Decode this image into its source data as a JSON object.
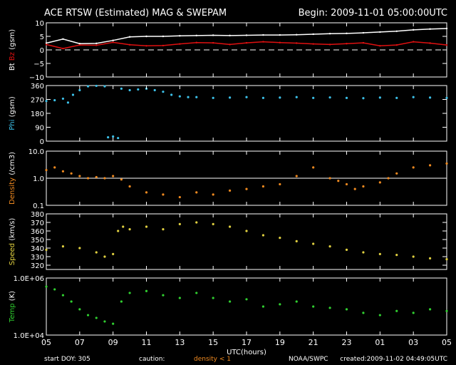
{
  "header": {
    "title": "ACE RTSW (Estimated) MAG & SWEPAM",
    "begin": "Begin: 2009-11-01 05:00:00UTC"
  },
  "footer": {
    "start_doy": "start DOY: 305",
    "caution_label": "caution:",
    "caution_note": "density < 1",
    "agency": "NOAA/SWPC",
    "created": "created:2009-11-02 04:49:05UTC"
  },
  "colors": {
    "background": "#000000",
    "axes": "#ffffff",
    "bt": "#ffffff",
    "bz": "#e01010",
    "phi": "#3cc0e8",
    "density": "#f08a20",
    "speed": "#e0d040",
    "temp": "#30d030"
  },
  "chart_data": [
    {
      "type": "line",
      "panel": "mag",
      "ylabel_parts": [
        {
          "text": "Bt",
          "color": "#ffffff"
        },
        {
          "text": "  ",
          "color": "#ffffff"
        },
        {
          "text": "Bz",
          "color": "#e01010"
        },
        {
          "text": "  (gsm)",
          "color": "#ffffff"
        }
      ],
      "ylim": [
        -10,
        10
      ],
      "yticks": [
        {
          "v": 10,
          "label": "10"
        },
        {
          "v": 5,
          "label": "5"
        },
        {
          "v": 0,
          "label": "0"
        },
        {
          "v": -5,
          "label": "−5"
        },
        {
          "v": -10,
          "label": "−10"
        }
      ],
      "reference_line": {
        "y": 0,
        "style": "dashed"
      },
      "series": [
        {
          "name": "Bt",
          "color": "#ffffff",
          "x": [
            0,
            1,
            2,
            3,
            4,
            5,
            6,
            7,
            8,
            9,
            10,
            11,
            12,
            13,
            14,
            15,
            16,
            17,
            18,
            19,
            20,
            21,
            22,
            23,
            24
          ],
          "values": [
            2.5,
            4.0,
            2.3,
            2.4,
            3.5,
            4.8,
            5.0,
            5.0,
            5.2,
            5.3,
            5.4,
            5.3,
            5.4,
            5.5,
            5.5,
            5.6,
            5.8,
            6.0,
            6.1,
            6.3,
            6.6,
            6.9,
            7.4,
            7.7,
            7.9
          ]
        },
        {
          "name": "Bz",
          "color": "#e01010",
          "x": [
            0,
            1,
            2,
            3,
            4,
            5,
            6,
            7,
            8,
            9,
            10,
            11,
            12,
            13,
            14,
            15,
            16,
            17,
            18,
            19,
            20,
            21,
            22,
            23,
            24
          ],
          "values": [
            2.0,
            0.5,
            1.8,
            1.7,
            2.8,
            1.9,
            1.5,
            1.6,
            2.2,
            2.7,
            2.6,
            2.0,
            2.6,
            3.0,
            2.7,
            2.5,
            2.2,
            2.0,
            2.3,
            2.6,
            1.5,
            1.8,
            3.0,
            2.5,
            1.8
          ]
        }
      ]
    },
    {
      "type": "scatter",
      "panel": "phi",
      "ylabel_parts": [
        {
          "text": "Phi",
          "color": "#3cc0e8"
        },
        {
          "text": " (gsm)",
          "color": "#ffffff"
        }
      ],
      "ylim": [
        0,
        360
      ],
      "yticks": [
        {
          "v": 360,
          "label": "360"
        },
        {
          "v": 270,
          "label": "270"
        },
        {
          "v": 180,
          "label": "180"
        },
        {
          "v": 90,
          "label": "90"
        },
        {
          "v": 0,
          "label": "0"
        }
      ],
      "series": [
        {
          "name": "Phi",
          "color": "#3cc0e8",
          "x": [
            0,
            0.5,
            1,
            1.3,
            1.6,
            2,
            2.5,
            3,
            3.5,
            3.7,
            4,
            4.3,
            4.5,
            5,
            5.5,
            6,
            6.5,
            7,
            7.5,
            8,
            8.5,
            9,
            10,
            11,
            12,
            13,
            14,
            15,
            16,
            17,
            18,
            19,
            20,
            21,
            22,
            23,
            24
          ],
          "values": [
            260,
            265,
            275,
            250,
            300,
            330,
            355,
            358,
            355,
            25,
            30,
            20,
            340,
            330,
            335,
            340,
            330,
            320,
            300,
            290,
            285,
            285,
            280,
            282,
            285,
            280,
            282,
            285,
            280,
            283,
            280,
            278,
            282,
            280,
            285,
            282,
            280
          ]
        }
      ]
    },
    {
      "type": "scatter",
      "panel": "density",
      "ylabel_parts": [
        {
          "text": "Density",
          "color": "#f08a20"
        },
        {
          "text": " (/cm3)",
          "color": "#ffffff"
        }
      ],
      "yscale": "log",
      "ylim": [
        0.1,
        10
      ],
      "yticks": [
        {
          "v": 10,
          "label": "10.0"
        },
        {
          "v": 1,
          "label": "1.0"
        },
        {
          "v": 0.1,
          "label": "0.1"
        }
      ],
      "reference_line": {
        "y": 1,
        "style": "solid"
      },
      "series": [
        {
          "name": "Density",
          "color": "#f08a20",
          "x": [
            0,
            0.5,
            1,
            1.5,
            2,
            2.5,
            3,
            3.5,
            4,
            4.5,
            5,
            6,
            7,
            8,
            9,
            10,
            11,
            12,
            13,
            14,
            15,
            16,
            17,
            17.5,
            18,
            18.5,
            19,
            20,
            20.5,
            21,
            22,
            23,
            24
          ],
          "values": [
            2.0,
            2.5,
            1.8,
            1.5,
            1.2,
            1.0,
            1.1,
            1.0,
            1.2,
            0.9,
            0.5,
            0.3,
            0.25,
            0.2,
            0.3,
            0.25,
            0.35,
            0.4,
            0.5,
            0.6,
            1.2,
            2.5,
            1.0,
            0.8,
            0.6,
            0.4,
            0.5,
            0.7,
            1.0,
            1.5,
            2.5,
            3.0,
            3.5
          ]
        }
      ]
    },
    {
      "type": "scatter",
      "panel": "speed",
      "ylabel_parts": [
        {
          "text": "Speed",
          "color": "#e0d040"
        },
        {
          "text": " (km/s)",
          "color": "#ffffff"
        }
      ],
      "ylim": [
        315,
        380
      ],
      "yticks": [
        {
          "v": 380,
          "label": "380"
        },
        {
          "v": 370,
          "label": "370"
        },
        {
          "v": 360,
          "label": "360"
        },
        {
          "v": 350,
          "label": "350"
        },
        {
          "v": 340,
          "label": "340"
        },
        {
          "v": 330,
          "label": "330"
        },
        {
          "v": 320,
          "label": "320"
        }
      ],
      "series": [
        {
          "name": "Speed",
          "color": "#e0d040",
          "x": [
            0,
            1,
            2,
            3,
            3.5,
            4,
            4.3,
            4.6,
            5,
            6,
            7,
            8,
            9,
            10,
            11,
            12,
            13,
            14,
            15,
            16,
            17,
            18,
            19,
            20,
            21,
            22,
            23,
            24
          ],
          "values": [
            338,
            342,
            340,
            335,
            330,
            333,
            360,
            365,
            362,
            365,
            362,
            368,
            370,
            368,
            365,
            360,
            355,
            352,
            348,
            345,
            342,
            338,
            335,
            333,
            332,
            330,
            328,
            327
          ]
        }
      ]
    },
    {
      "type": "scatter",
      "panel": "temp",
      "ylabel_parts": [
        {
          "text": "Temp",
          "color": "#30d030"
        },
        {
          "text": " (K)",
          "color": "#ffffff"
        }
      ],
      "yscale": "log",
      "ylim": [
        10000,
        1000000
      ],
      "yticks": [
        {
          "v": 1000000,
          "label": "1.0E+06"
        },
        {
          "v": 10000,
          "label": "1.0E+04"
        }
      ],
      "series": [
        {
          "name": "Temp",
          "color": "#30d030",
          "x": [
            0,
            0.5,
            1,
            1.5,
            2,
            2.5,
            3,
            3.5,
            4,
            4.5,
            5,
            6,
            7,
            8,
            9,
            10,
            11,
            12,
            13,
            14,
            15,
            16,
            17,
            18,
            19,
            20,
            21,
            22,
            23,
            24
          ],
          "values": [
            500000,
            400000,
            250000,
            150000,
            80000,
            50000,
            40000,
            30000,
            25000,
            150000,
            300000,
            350000,
            250000,
            200000,
            300000,
            200000,
            150000,
            180000,
            100000,
            120000,
            150000,
            100000,
            90000,
            80000,
            60000,
            50000,
            70000,
            60000,
            80000,
            70000
          ]
        }
      ]
    }
  ],
  "xaxis": {
    "label": "UTC(hours)",
    "range": [
      0,
      24
    ],
    "ticks": [
      {
        "v": 0,
        "label": "05"
      },
      {
        "v": 2,
        "label": "07"
      },
      {
        "v": 4,
        "label": "09"
      },
      {
        "v": 6,
        "label": "11"
      },
      {
        "v": 8,
        "label": "13"
      },
      {
        "v": 10,
        "label": "15"
      },
      {
        "v": 12,
        "label": "17"
      },
      {
        "v": 14,
        "label": "19"
      },
      {
        "v": 16,
        "label": "21"
      },
      {
        "v": 18,
        "label": "23"
      },
      {
        "v": 20,
        "label": "01"
      },
      {
        "v": 22,
        "label": "03"
      },
      {
        "v": 24,
        "label": "05"
      }
    ]
  }
}
